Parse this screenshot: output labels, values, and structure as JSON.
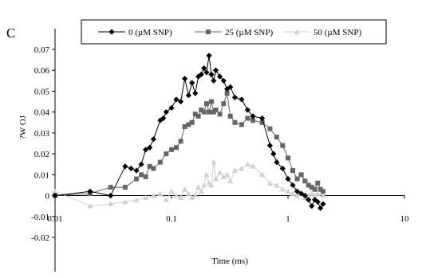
{
  "chart_data": {
    "type": "line",
    "panel_label": "C",
    "xlabel": "Time (ms)",
    "ylabel": "?W OJ",
    "xscale": "log",
    "xlim": [
      0.01,
      10
    ],
    "ylim": [
      -0.02,
      0.07
    ],
    "grid": false,
    "legend_position": "top",
    "x_ticks": [
      "0.01",
      "0.1",
      "1",
      "10"
    ],
    "y_ticks": [
      "-0.02",
      "-0.01",
      "0",
      "0.01",
      "0.02",
      "0.03",
      "0.04",
      "0.05",
      "0.06",
      "0.07"
    ],
    "series": [
      {
        "name": "0 (µM SNP)",
        "color": "#000000",
        "marker": "diamond",
        "points": [
          [
            0.01,
            0.0
          ],
          [
            0.02,
            0.002
          ],
          [
            0.03,
            0.0
          ],
          [
            0.04,
            0.014
          ],
          [
            0.045,
            0.013
          ],
          [
            0.05,
            0.012
          ],
          [
            0.055,
            0.015
          ],
          [
            0.06,
            0.022
          ],
          [
            0.065,
            0.023
          ],
          [
            0.07,
            0.027
          ],
          [
            0.08,
            0.036
          ],
          [
            0.085,
            0.037
          ],
          [
            0.09,
            0.04
          ],
          [
            0.1,
            0.042
          ],
          [
            0.11,
            0.046
          ],
          [
            0.12,
            0.045
          ],
          [
            0.13,
            0.056
          ],
          [
            0.14,
            0.048
          ],
          [
            0.15,
            0.054
          ],
          [
            0.16,
            0.049
          ],
          [
            0.17,
            0.057
          ],
          [
            0.18,
            0.058
          ],
          [
            0.19,
            0.061
          ],
          [
            0.2,
            0.059
          ],
          [
            0.21,
            0.067
          ],
          [
            0.22,
            0.058
          ],
          [
            0.23,
            0.055
          ],
          [
            0.24,
            0.06
          ],
          [
            0.26,
            0.057
          ],
          [
            0.28,
            0.055
          ],
          [
            0.3,
            0.051
          ],
          [
            0.32,
            0.052
          ],
          [
            0.35,
            0.047
          ],
          [
            0.4,
            0.046
          ],
          [
            0.45,
            0.041
          ],
          [
            0.5,
            0.038
          ],
          [
            0.6,
            0.037
          ],
          [
            0.7,
            0.024
          ],
          [
            0.75,
            0.02
          ],
          [
            0.8,
            0.016
          ],
          [
            0.9,
            0.013
          ],
          [
            1.0,
            0.008
          ],
          [
            1.1,
            0.005
          ],
          [
            1.2,
            0.002
          ],
          [
            1.3,
            0.001
          ],
          [
            1.4,
            0.0
          ],
          [
            1.5,
            -0.002
          ],
          [
            1.6,
            -0.005
          ],
          [
            1.7,
            -0.002
          ],
          [
            1.8,
            -0.003
          ],
          [
            1.9,
            -0.006
          ],
          [
            2.0,
            -0.004
          ]
        ]
      },
      {
        "name": "25 (µM SNP)",
        "color": "#666666",
        "marker": "square",
        "points": [
          [
            0.01,
            0.0
          ],
          [
            0.02,
            0.001
          ],
          [
            0.03,
            0.004
          ],
          [
            0.04,
            0.004
          ],
          [
            0.05,
            0.008
          ],
          [
            0.055,
            0.01
          ],
          [
            0.06,
            0.009
          ],
          [
            0.065,
            0.014
          ],
          [
            0.07,
            0.013
          ],
          [
            0.08,
            0.016
          ],
          [
            0.09,
            0.02
          ],
          [
            0.1,
            0.022
          ],
          [
            0.11,
            0.023
          ],
          [
            0.12,
            0.026
          ],
          [
            0.13,
            0.033
          ],
          [
            0.14,
            0.034
          ],
          [
            0.15,
            0.035
          ],
          [
            0.16,
            0.039
          ],
          [
            0.17,
            0.038
          ],
          [
            0.18,
            0.041
          ],
          [
            0.19,
            0.04
          ],
          [
            0.2,
            0.044
          ],
          [
            0.21,
            0.04
          ],
          [
            0.22,
            0.045
          ],
          [
            0.23,
            0.04
          ],
          [
            0.24,
            0.041
          ],
          [
            0.26,
            0.039
          ],
          [
            0.28,
            0.044
          ],
          [
            0.3,
            0.049
          ],
          [
            0.32,
            0.038
          ],
          [
            0.35,
            0.035
          ],
          [
            0.4,
            0.034
          ],
          [
            0.45,
            0.037
          ],
          [
            0.5,
            0.036
          ],
          [
            0.6,
            0.035
          ],
          [
            0.7,
            0.032
          ],
          [
            0.8,
            0.028
          ],
          [
            0.9,
            0.024
          ],
          [
            1.0,
            0.018
          ],
          [
            1.1,
            0.012
          ],
          [
            1.2,
            0.008
          ],
          [
            1.3,
            0.01
          ],
          [
            1.4,
            0.007
          ],
          [
            1.5,
            0.005
          ],
          [
            1.6,
            0.004
          ],
          [
            1.7,
            0.003
          ],
          [
            1.8,
            0.006
          ],
          [
            1.9,
            0.003
          ],
          [
            2.0,
            0.002
          ]
        ]
      },
      {
        "name": "50 (µM SNP)",
        "color": "#d0d0d0",
        "marker": "triangle",
        "points": [
          [
            0.01,
            0.002
          ],
          [
            0.02,
            -0.005
          ],
          [
            0.03,
            -0.004
          ],
          [
            0.04,
            -0.003
          ],
          [
            0.05,
            -0.002
          ],
          [
            0.06,
            -0.001
          ],
          [
            0.07,
            0.0
          ],
          [
            0.08,
            0.001
          ],
          [
            0.09,
            -0.002
          ],
          [
            0.1,
            0.002
          ],
          [
            0.11,
            0.0
          ],
          [
            0.12,
            -0.001
          ],
          [
            0.13,
            0.003
          ],
          [
            0.14,
            0.001
          ],
          [
            0.15,
            -0.001
          ],
          [
            0.16,
            0.0
          ],
          [
            0.17,
            0.004
          ],
          [
            0.18,
            0.002
          ],
          [
            0.19,
            0.005
          ],
          [
            0.2,
            0.01
          ],
          [
            0.21,
            0.006
          ],
          [
            0.22,
            0.005
          ],
          [
            0.23,
            0.016
          ],
          [
            0.24,
            0.008
          ],
          [
            0.26,
            0.011
          ],
          [
            0.28,
            0.009
          ],
          [
            0.3,
            0.01
          ],
          [
            0.32,
            0.007
          ],
          [
            0.35,
            0.012
          ],
          [
            0.4,
            0.013
          ],
          [
            0.45,
            0.015
          ],
          [
            0.5,
            0.014
          ],
          [
            0.6,
            0.01
          ],
          [
            0.7,
            0.006
          ],
          [
            0.8,
            0.005
          ],
          [
            0.9,
            0.003
          ],
          [
            1.0,
            0.002
          ],
          [
            1.1,
            0.001
          ],
          [
            1.2,
            0.0
          ],
          [
            1.3,
            0.001
          ],
          [
            1.4,
            -0.001
          ],
          [
            1.5,
            0.0
          ],
          [
            1.6,
            0.001
          ],
          [
            1.7,
            0.0
          ],
          [
            1.8,
            0.001
          ],
          [
            2.0,
            0.0
          ]
        ]
      }
    ]
  }
}
